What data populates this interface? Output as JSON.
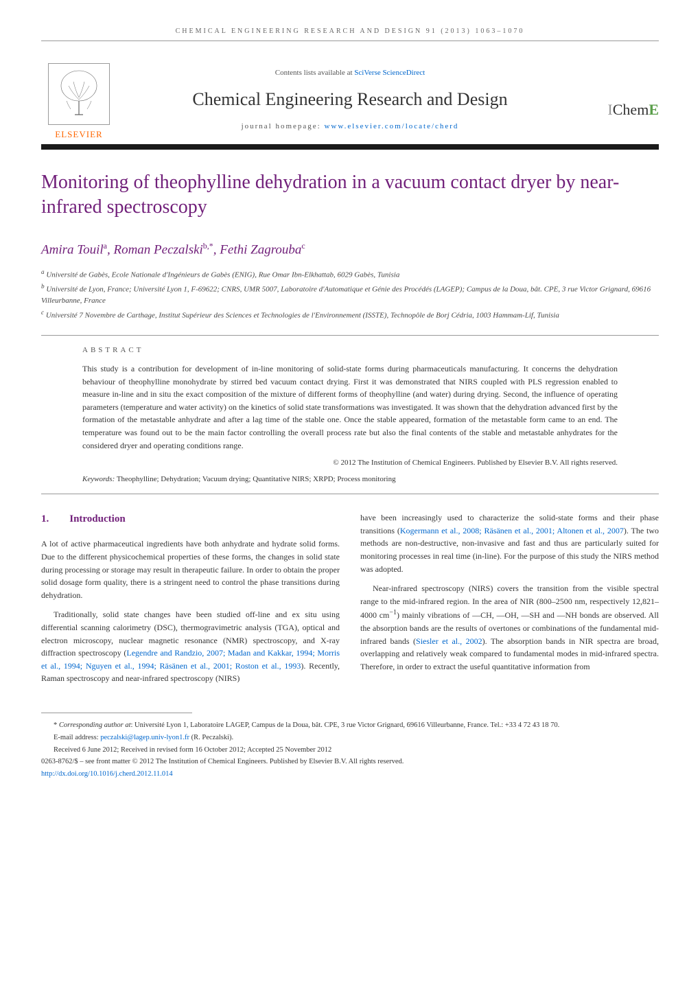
{
  "running_header": "CHEMICAL ENGINEERING RESEARCH AND DESIGN 91 (2013) 1063–1070",
  "banner": {
    "elsevier": "ELSEVIER",
    "contents_prefix": "Contents lists available at ",
    "contents_link": "SciVerse ScienceDirect",
    "journal_name": "Chemical Engineering Research and Design",
    "homepage_prefix": "journal homepage: ",
    "homepage_link": "www.elsevier.com/locate/cherd",
    "icheme_i": "I",
    "icheme_chem": "Chem",
    "icheme_e": "E"
  },
  "title": "Monitoring of theophylline dehydration in a vacuum contact dryer by near-infrared spectroscopy",
  "authors_html": "Amira Touil<sup>a</sup>, Roman Peczalski<sup>b,*</sup>, Fethi Zagrouba<sup>c</sup>",
  "affiliations": [
    "<sup>a</sup> Université de Gabès, Ecole Nationale d'Ingénieurs de Gabès (ENIG), Rue Omar Ibn-Elkhattab, 6029 Gabès, Tunisia",
    "<sup>b</sup> Université de Lyon, France; Université Lyon 1, F-69622; CNRS, UMR 5007, Laboratoire d'Automatique et Génie des Procédés (LAGEP); Campus de la Doua, bât. CPE, 3 rue Victor Grignard, 69616 Villeurbanne, France",
    "<sup>c</sup> Université 7 Novembre de Carthage, Institut Supérieur des Sciences et Technologies de l'Environnement (ISSTE), Technopôle de Borj Cédria, 1003 Hammam-Lif, Tunisia"
  ],
  "abstract": {
    "heading": "ABSTRACT",
    "text": "This study is a contribution for development of in-line monitoring of solid-state forms during pharmaceuticals manufacturing. It concerns the dehydration behaviour of theophylline monohydrate by stirred bed vacuum contact drying. First it was demonstrated that NIRS coupled with PLS regression enabled to measure in-line and in situ the exact composition of the mixture of different forms of theophylline (and water) during drying. Second, the influence of operating parameters (temperature and water activity) on the kinetics of solid state transformations was investigated. It was shown that the dehydration advanced first by the formation of the metastable anhydrate and after a lag time of the stable one. Once the stable appeared, formation of the metastable form came to an end. The temperature was found out to be the main factor controlling the overall process rate but also the final contents of the stable and metastable anhydrates for the considered dryer and operating conditions range.",
    "copyright": "© 2012 The Institution of Chemical Engineers. Published by Elsevier B.V. All rights reserved.",
    "keywords_label": "Keywords:",
    "keywords": " Theophylline; Dehydration; Vacuum drying; Quantitative NIRS; XRPD; Process monitoring"
  },
  "body": {
    "section_num": "1.",
    "section_title": "Introduction",
    "left_col": [
      "A lot of active pharmaceutical ingredients have both anhydrate and hydrate solid forms. Due to the different physicochemical properties of these forms, the changes in solid state during processing or storage may result in therapeutic failure. In order to obtain the proper solid dosage form quality, there is a stringent need to control the phase transitions during dehydration.",
      "Traditionally, solid state changes have been studied off-line and ex situ using differential scanning calorimetry (DSC), thermogravimetric analysis (TGA), optical and electron microscopy, nuclear magnetic resonance (NMR) spectroscopy, and X-ray diffraction spectroscopy (<a class=\"ref-link\" href=\"#\">Legendre and Randzio, 2007; Madan and Kakkar, 1994; Morris et al., 1994; Nguyen et al., 1994; Räsänen et al., 2001; Roston et al., 1993</a>). Recently, Raman spectroscopy and near-infrared spectroscopy (NIRS)"
    ],
    "right_col": [
      "have been increasingly used to characterize the solid-state forms and their phase transitions (<a class=\"ref-link\" href=\"#\">Kogermann et al., 2008; Räsänen et al., 2001; Altonen et al., 2007</a>). The two methods are non-destructive, non-invasive and fast and thus are particularly suited for monitoring processes in real time (in-line). For the purpose of this study the NIRS method was adopted.",
      "Near-infrared spectroscopy (NIRS) covers the transition from the visible spectral range to the mid-infrared region. In the area of NIR (800–2500 nm, respectively 12,821–4000 cm<sup>−1</sup>) mainly vibrations of —CH, —OH, —SH and —NH bonds are observed. All the absorption bands are the results of overtones or combinations of the fundamental mid-infrared bands (<a class=\"ref-link\" href=\"#\">Siesler et al., 2002</a>). The absorption bands in NIR spectra are broad, overlapping and relatively weak compared to fundamental modes in mid-infrared spectra. Therefore, in order to extract the useful quantitative information from"
    ]
  },
  "footer": {
    "corresponding": "* <i>Corresponding author at</i>: Université Lyon 1, Laboratoire LAGEP, Campus de la Doua, bât. CPE, 3 rue Victor Grignard, 69616 Villeurbanne, France. Tel.: +33 4 72 43 18 70.",
    "email_label": "E-mail address: ",
    "email": "peczalski@lagep.univ-lyon1.fr",
    "email_suffix": " (R. Peczalski).",
    "received": "Received 6 June 2012; Received in revised form 16 October 2012; Accepted 25 November 2012",
    "issn_line": "0263-8762/$ – see front matter © 2012 The Institution of Chemical Engineers. Published by Elsevier B.V. All rights reserved.",
    "doi": "http://dx.doi.org/10.1016/j.cherd.2012.11.014"
  },
  "colors": {
    "purple": "#71207a",
    "orange": "#ff6600",
    "green": "#5a9e4a",
    "link": "#0066cc"
  }
}
